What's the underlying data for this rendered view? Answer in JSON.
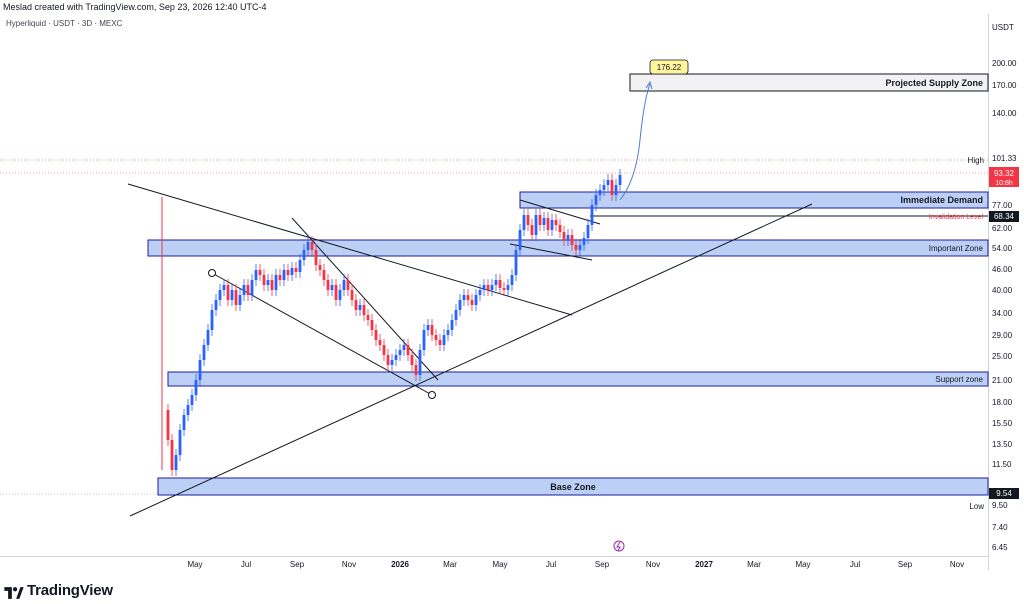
{
  "header": {
    "credit": "Meslad created with TradingView.com, Sep 23, 2026 12:40 UTC-4"
  },
  "symbol": {
    "text": "Hyperliquid · USDT · 3D · MEXC"
  },
  "axis": {
    "unit": "USDT",
    "price_ticks": [
      "200.00",
      "170.00",
      "140.00",
      "101.33",
      "93.32",
      "77.00",
      "68.34",
      "62.00",
      "54.00",
      "46.00",
      "40.00",
      "34.00",
      "29.00",
      "25.00",
      "21.00",
      "18.00",
      "15.50",
      "13.50",
      "11.50",
      "9.54",
      "9.50",
      "7.40",
      "6.45"
    ],
    "time_ticks": [
      "May",
      "Jul",
      "Sep",
      "Nov",
      "2026",
      "Mar",
      "May",
      "Jul",
      "Sep",
      "Nov",
      "2027",
      "Mar",
      "May",
      "Jul",
      "Sep",
      "Nov"
    ]
  },
  "labels": {
    "high": "High",
    "low": "Low",
    "high_value": "101.33",
    "last_price": "93.32",
    "countdown": "10:8h",
    "invalidation_value": "68.34",
    "low_value": "9.54",
    "target": "176.22"
  },
  "zones": {
    "projected_supply": "Projected Supply Zone",
    "immediate_demand": "Immediate Demand",
    "invalidation": "Invalidation Level",
    "important": "Important Zone",
    "support": "Support zone",
    "base": "Base Zone"
  },
  "colors": {
    "up": "#2962ff",
    "down": "#f23645",
    "zone_fill": "#bcd0f5",
    "zone_border": "#1c1c9e",
    "target_bg": "#fff59d"
  },
  "footer": {
    "brand": "TradingView"
  }
}
